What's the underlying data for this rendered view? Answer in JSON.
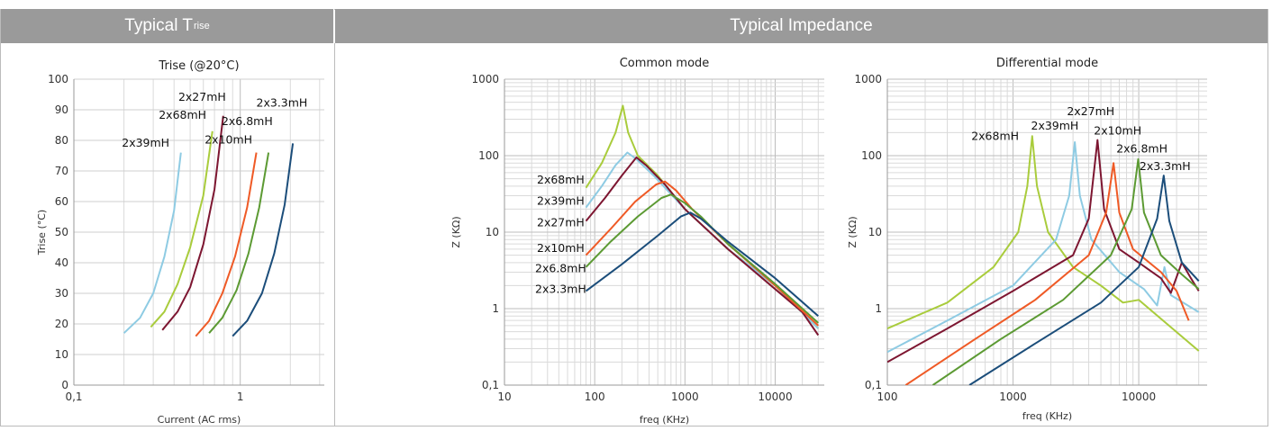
{
  "headers": {
    "trise_main": "Typical T",
    "trise_sub": "rise",
    "impedance": "Typical Impedance"
  },
  "colors": {
    "2x3.3mH": "#1b4d7a",
    "2x6.8mH": "#5c9a33",
    "2x10mH": "#ef5a26",
    "2x27mH": "#7d1631",
    "2x39mH": "#8ecbe3",
    "2x68mH": "#a9cc3c",
    "grid": "#d0d0d0",
    "header_bg": "#9a9a9a"
  },
  "chart_data": [
    {
      "type": "line",
      "title": "Trise (@20°C)",
      "xlabel": "Current (AC rms)",
      "ylabel": "Trise (°C)",
      "xscale": "log",
      "xlim": [
        0.1,
        3.2
      ],
      "ylim": [
        0,
        100
      ],
      "xticks": [
        {
          "v": 0.1,
          "label": "0,1"
        },
        {
          "v": 1,
          "label": "1"
        }
      ],
      "yticks": [
        0,
        10,
        20,
        30,
        40,
        50,
        60,
        70,
        80,
        90,
        100
      ],
      "grid": true,
      "series": [
        {
          "name": "2x39mH",
          "points": [
            [
              0.2,
              17
            ],
            [
              0.25,
              22
            ],
            [
              0.3,
              30
            ],
            [
              0.35,
              42
            ],
            [
              0.4,
              57
            ],
            [
              0.44,
              76
            ]
          ]
        },
        {
          "name": "2x68mH",
          "points": [
            [
              0.29,
              19
            ],
            [
              0.35,
              24
            ],
            [
              0.42,
              33
            ],
            [
              0.5,
              45
            ],
            [
              0.6,
              62
            ],
            [
              0.68,
              83
            ]
          ]
        },
        {
          "name": "2x27mH",
          "points": [
            [
              0.34,
              18
            ],
            [
              0.42,
              24
            ],
            [
              0.5,
              32
            ],
            [
              0.6,
              46
            ],
            [
              0.7,
              64
            ],
            [
              0.79,
              88
            ]
          ]
        },
        {
          "name": "2x10mH",
          "points": [
            [
              0.54,
              16
            ],
            [
              0.65,
              21
            ],
            [
              0.78,
              30
            ],
            [
              0.93,
              42
            ],
            [
              1.1,
              58
            ],
            [
              1.25,
              76
            ]
          ]
        },
        {
          "name": "2x6.8mH",
          "points": [
            [
              0.65,
              17
            ],
            [
              0.78,
              22
            ],
            [
              0.95,
              31
            ],
            [
              1.12,
              43
            ],
            [
              1.3,
              58
            ],
            [
              1.48,
              76
            ]
          ]
        },
        {
          "name": "2x3.3mH",
          "points": [
            [
              0.9,
              16
            ],
            [
              1.1,
              21
            ],
            [
              1.35,
              30
            ],
            [
              1.6,
              43
            ],
            [
              1.85,
              59
            ],
            [
              2.07,
              79
            ]
          ]
        }
      ],
      "annotations": [
        {
          "text": "2x39mH",
          "x": 0.27,
          "y": 78
        },
        {
          "text": "2x68mH",
          "x": 0.45,
          "y": 87
        },
        {
          "text": "2x27mH",
          "x": 0.59,
          "y": 93
        },
        {
          "text": "2x10mH",
          "x": 0.85,
          "y": 79
        },
        {
          "text": "2x6.8mH",
          "x": 1.1,
          "y": 85
        },
        {
          "text": "2x3.3mH",
          "x": 1.78,
          "y": 91
        }
      ]
    },
    {
      "type": "line",
      "title": "Common mode",
      "xlabel": "freq (KHz)",
      "ylabel": "Z (KΩ)",
      "xscale": "log",
      "yscale": "log",
      "xlim": [
        10,
        35000
      ],
      "ylim": [
        0.1,
        1000
      ],
      "xticks": [
        {
          "v": 10,
          "label": "10"
        },
        {
          "v": 100,
          "label": "100"
        },
        {
          "v": 1000,
          "label": "1000"
        },
        {
          "v": 10000,
          "label": "10000"
        }
      ],
      "yticks": [
        {
          "v": 0.1,
          "label": "0,1"
        },
        {
          "v": 1,
          "label": "1"
        },
        {
          "v": 10,
          "label": "10"
        },
        {
          "v": 100,
          "label": "100"
        },
        {
          "v": 1000,
          "label": "1000"
        }
      ],
      "grid": true,
      "series": [
        {
          "name": "2x68mH",
          "points": [
            [
              80,
              38
            ],
            [
              120,
              80
            ],
            [
              170,
              200
            ],
            [
              205,
              450
            ],
            [
              235,
              200
            ],
            [
              300,
              100
            ],
            [
              500,
              55
            ],
            [
              1000,
              20
            ],
            [
              3000,
              6
            ],
            [
              10000,
              2
            ],
            [
              30000,
              0.55
            ]
          ]
        },
        {
          "name": "2x39mH",
          "points": [
            [
              80,
              21
            ],
            [
              120,
              40
            ],
            [
              170,
              75
            ],
            [
              230,
              110
            ],
            [
              290,
              90
            ],
            [
              450,
              55
            ],
            [
              1000,
              20
            ],
            [
              3000,
              6
            ],
            [
              10000,
              2
            ],
            [
              30000,
              0.55
            ]
          ]
        },
        {
          "name": "2x27mH",
          "points": [
            [
              80,
              14
            ],
            [
              130,
              28
            ],
            [
              200,
              55
            ],
            [
              290,
              95
            ],
            [
              370,
              75
            ],
            [
              600,
              42
            ],
            [
              1000,
              20
            ],
            [
              3000,
              6
            ],
            [
              10000,
              1.8
            ],
            [
              20000,
              0.9
            ],
            [
              30000,
              0.45
            ]
          ]
        },
        {
          "name": "2x10mH",
          "points": [
            [
              80,
              5
            ],
            [
              150,
              11
            ],
            [
              280,
              25
            ],
            [
              480,
              42
            ],
            [
              600,
              46
            ],
            [
              800,
              35
            ],
            [
              1200,
              20
            ],
            [
              3000,
              7
            ],
            [
              10000,
              2
            ],
            [
              30000,
              0.6
            ]
          ]
        },
        {
          "name": "2x6.8mH",
          "points": [
            [
              80,
              3.5
            ],
            [
              150,
              7.5
            ],
            [
              300,
              16
            ],
            [
              550,
              28
            ],
            [
              700,
              31
            ],
            [
              1000,
              24
            ],
            [
              1500,
              16
            ],
            [
              3000,
              7
            ],
            [
              10000,
              2.1
            ],
            [
              30000,
              0.65
            ]
          ]
        },
        {
          "name": "2x3.3mH",
          "points": [
            [
              80,
              1.7
            ],
            [
              200,
              3.8
            ],
            [
              500,
              9
            ],
            [
              900,
              16
            ],
            [
              1150,
              18
            ],
            [
              1500,
              15
            ],
            [
              3000,
              7.5
            ],
            [
              10000,
              2.5
            ],
            [
              30000,
              0.8
            ]
          ]
        }
      ],
      "annotations": [
        {
          "text": "2x68mH",
          "x": 42,
          "y": 43
        },
        {
          "text": "2x39mH",
          "x": 42,
          "y": 23
        },
        {
          "text": "2x27mH",
          "x": 42,
          "y": 12
        },
        {
          "text": "2x10mH",
          "x": 42,
          "y": 5.5
        },
        {
          "text": "2x6.8mH",
          "x": 42,
          "y": 3
        },
        {
          "text": "2x3.3mH",
          "x": 42,
          "y": 1.6
        }
      ]
    },
    {
      "type": "line",
      "title": "Differential mode",
      "xlabel": "freq (KHz)",
      "ylabel": "Z (KΩ)",
      "xscale": "log",
      "yscale": "log",
      "xlim": [
        100,
        35000
      ],
      "ylim": [
        0.1,
        1000
      ],
      "xticks": [
        {
          "v": 100,
          "label": "100"
        },
        {
          "v": 1000,
          "label": "1000"
        },
        {
          "v": 10000,
          "label": "10000"
        }
      ],
      "yticks": [
        {
          "v": 0.1,
          "label": "0,1"
        },
        {
          "v": 1,
          "label": "1"
        },
        {
          "v": 10,
          "label": "10"
        },
        {
          "v": 100,
          "label": "100"
        },
        {
          "v": 1000,
          "label": "1000"
        }
      ],
      "grid": true,
      "series": [
        {
          "name": "2x68mH",
          "points": [
            [
              100,
              0.55
            ],
            [
              300,
              1.2
            ],
            [
              700,
              3.5
            ],
            [
              1100,
              10
            ],
            [
              1300,
              40
            ],
            [
              1420,
              180
            ],
            [
              1550,
              40
            ],
            [
              1900,
              10
            ],
            [
              3000,
              3.5
            ],
            [
              5000,
              2
            ],
            [
              7500,
              1.2
            ],
            [
              10000,
              1.3
            ],
            [
              30000,
              0.28
            ]
          ]
        },
        {
          "name": "2x39mH",
          "points": [
            [
              100,
              0.27
            ],
            [
              300,
              0.7
            ],
            [
              1000,
              2
            ],
            [
              2200,
              8
            ],
            [
              2800,
              30
            ],
            [
              3100,
              150
            ],
            [
              3400,
              30
            ],
            [
              4200,
              8
            ],
            [
              7000,
              3
            ],
            [
              11000,
              1.8
            ],
            [
              14000,
              1.1
            ],
            [
              16000,
              3.5
            ],
            [
              18000,
              1.5
            ],
            [
              30000,
              0.9
            ]
          ]
        },
        {
          "name": "2x27mH",
          "points": [
            [
              100,
              0.2
            ],
            [
              300,
              0.55
            ],
            [
              1000,
              1.7
            ],
            [
              3000,
              5
            ],
            [
              4000,
              15
            ],
            [
              4700,
              160
            ],
            [
              5300,
              20
            ],
            [
              7000,
              6
            ],
            [
              10000,
              4
            ],
            [
              15000,
              2.5
            ],
            [
              18000,
              1.6
            ],
            [
              22000,
              4
            ],
            [
              26000,
              2.5
            ],
            [
              30000,
              1.7
            ]
          ]
        },
        {
          "name": "2x10mH",
          "points": [
            [
              140,
              0.1
            ],
            [
              500,
              0.4
            ],
            [
              1500,
              1.3
            ],
            [
              4000,
              5
            ],
            [
              5500,
              18
            ],
            [
              6300,
              80
            ],
            [
              7000,
              18
            ],
            [
              9000,
              6
            ],
            [
              15000,
              3
            ],
            [
              20000,
              1.7
            ],
            [
              25000,
              0.7
            ]
          ]
        },
        {
          "name": "2x6.8mH",
          "points": [
            [
              230,
              0.1
            ],
            [
              800,
              0.4
            ],
            [
              2500,
              1.3
            ],
            [
              6000,
              5
            ],
            [
              8800,
              20
            ],
            [
              9900,
              90
            ],
            [
              11000,
              18
            ],
            [
              15000,
              5
            ],
            [
              22000,
              2.8
            ],
            [
              30000,
              1.8
            ]
          ]
        },
        {
          "name": "2x3.3mH",
          "points": [
            [
              450,
              0.1
            ],
            [
              1500,
              0.35
            ],
            [
              5000,
              1.2
            ],
            [
              10000,
              3.5
            ],
            [
              14000,
              15
            ],
            [
              15800,
              55
            ],
            [
              17500,
              14
            ],
            [
              22000,
              4
            ],
            [
              30000,
              2.3
            ]
          ]
        }
      ],
      "annotations": [
        {
          "text": "2x68mH",
          "x": 720,
          "y": 160
        },
        {
          "text": "2x39mH",
          "x": 2150,
          "y": 220
        },
        {
          "text": "2x27mH",
          "x": 4150,
          "y": 340
        },
        {
          "text": "2x10mH",
          "x": 6800,
          "y": 190
        },
        {
          "text": "2x6.8mH",
          "x": 10600,
          "y": 110
        },
        {
          "text": "2x3.3mH",
          "x": 16200,
          "y": 65
        }
      ]
    }
  ]
}
